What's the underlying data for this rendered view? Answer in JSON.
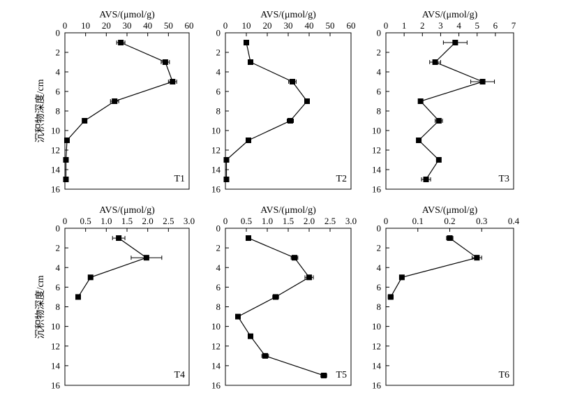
{
  "figure": {
    "ylabel": "沉积物深度/cm"
  },
  "chart_data": [
    {
      "type": "line",
      "panel": "T1",
      "xlabel": "AVS/(μmol/g)",
      "ylabel": "沉积物深度/cm",
      "xlim": [
        0,
        60
      ],
      "xticks": [
        0,
        10,
        20,
        30,
        40,
        50,
        60
      ],
      "ylim": [
        0,
        16
      ],
      "yticks": [
        0,
        2,
        4,
        6,
        8,
        10,
        12,
        14,
        16
      ],
      "y_inverted": true,
      "series": [
        {
          "x": [
            27,
            48.5,
            52,
            24,
            9.5,
            1,
            0.5,
            0.5
          ],
          "y": [
            1,
            3,
            5,
            7,
            9,
            11,
            13,
            15
          ],
          "err": [
            2,
            2,
            2,
            2,
            0,
            0,
            0,
            0
          ]
        }
      ]
    },
    {
      "type": "line",
      "panel": "T2",
      "xlabel": "AVS/(μmol/g)",
      "ylabel": "",
      "xlim": [
        0,
        60
      ],
      "xticks": [
        0,
        10,
        20,
        30,
        40,
        50,
        60
      ],
      "ylim": [
        0,
        16
      ],
      "yticks": [
        0,
        2,
        4,
        6,
        8,
        10,
        12,
        14,
        16
      ],
      "y_inverted": true,
      "series": [
        {
          "x": [
            10,
            12,
            32,
            39,
            31,
            11,
            0.5,
            0.5
          ],
          "y": [
            1,
            3,
            5,
            7,
            9,
            11,
            13,
            15
          ],
          "err": [
            0,
            0,
            1.8,
            0,
            1.5,
            0,
            0,
            0
          ]
        }
      ]
    },
    {
      "type": "line",
      "panel": "T3",
      "xlabel": "AVS/(μmol/g)",
      "ylabel": "",
      "xlim": [
        0,
        7
      ],
      "xticks": [
        0,
        1,
        2,
        3,
        4,
        5,
        6,
        7
      ],
      "ylim": [
        0,
        16
      ],
      "yticks": [
        0,
        2,
        4,
        6,
        8,
        10,
        12,
        14,
        16
      ],
      "y_inverted": true,
      "series": [
        {
          "x": [
            3.8,
            2.7,
            5.3,
            1.9,
            2.9,
            1.8,
            2.9,
            2.2
          ],
          "y": [
            1,
            3,
            5,
            7,
            9,
            11,
            13,
            15
          ],
          "err": [
            0.65,
            0.3,
            0.65,
            0,
            0.2,
            0,
            0,
            0.25
          ]
        }
      ]
    },
    {
      "type": "line",
      "panel": "T4",
      "xlabel": "AVS/(μmol/g)",
      "ylabel": "沉积物深度/cm",
      "xlim": [
        0,
        3
      ],
      "xticks": [
        0,
        0.5,
        1.0,
        1.5,
        2.0,
        2.5,
        3.0
      ],
      "xtick_labels": [
        "0",
        "0.5",
        "1.0",
        "1.5",
        "2.0",
        "2.5",
        "3.0"
      ],
      "ylim": [
        0,
        16
      ],
      "yticks": [
        0,
        2,
        4,
        6,
        8,
        10,
        12,
        14,
        16
      ],
      "y_inverted": true,
      "series": [
        {
          "x": [
            1.3,
            1.97,
            0.62,
            0.32
          ],
          "y": [
            1,
            3,
            5,
            7
          ],
          "err": [
            0.15,
            0.37,
            0,
            0
          ]
        }
      ]
    },
    {
      "type": "line",
      "panel": "T5",
      "xlabel": "AVS/(μmol/g)",
      "ylabel": "",
      "xlim": [
        0,
        3
      ],
      "xticks": [
        0,
        0.5,
        1.0,
        1.5,
        2.0,
        2.5,
        3.0
      ],
      "xtick_labels": [
        "0",
        "0.5",
        "1.0",
        "1.5",
        "2.0",
        "2.5",
        "3.0"
      ],
      "ylim": [
        0,
        16
      ],
      "yticks": [
        0,
        2,
        4,
        6,
        8,
        10,
        12,
        14,
        16
      ],
      "y_inverted": true,
      "series": [
        {
          "x": [
            0.55,
            1.65,
            2.0,
            1.2,
            0.3,
            0.6,
            0.95,
            2.35
          ],
          "y": [
            1,
            3,
            5,
            7,
            9,
            11,
            13,
            15
          ],
          "err": [
            0,
            0.08,
            0.1,
            0.07,
            0,
            0,
            0.08,
            0.07
          ]
        }
      ]
    },
    {
      "type": "line",
      "panel": "T6",
      "xlabel": "AVS/(μmol/g)",
      "ylabel": "",
      "xlim": [
        0,
        0.4
      ],
      "xticks": [
        0,
        0.1,
        0.2,
        0.3,
        0.4
      ],
      "xtick_labels": [
        "0",
        "0.1",
        "0.2",
        "0.3",
        "0.4"
      ],
      "ylim": [
        0,
        16
      ],
      "yticks": [
        0,
        2,
        4,
        6,
        8,
        10,
        12,
        14,
        16
      ],
      "y_inverted": true,
      "series": [
        {
          "x": [
            0.2,
            0.285,
            0.05,
            0.015
          ],
          "y": [
            1,
            3,
            5,
            7
          ],
          "err": [
            0.01,
            0.015,
            0,
            0.008
          ]
        }
      ]
    }
  ]
}
